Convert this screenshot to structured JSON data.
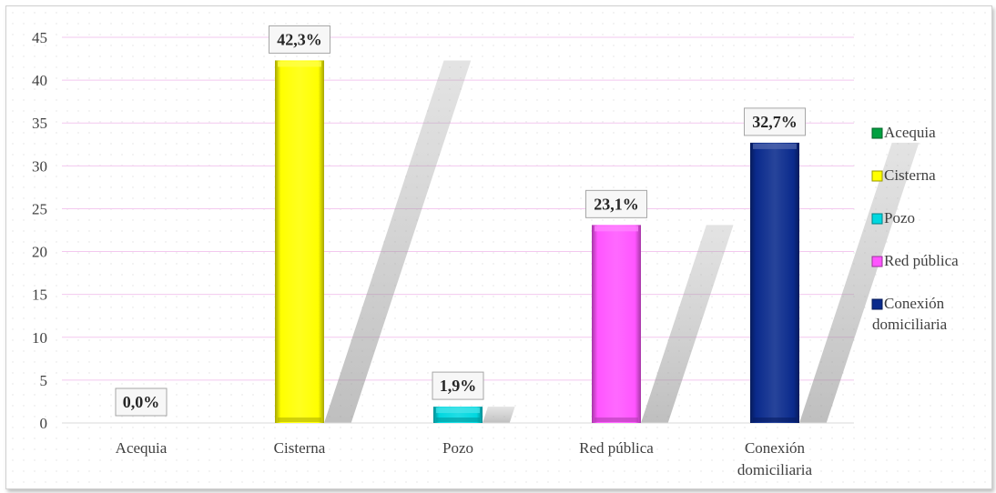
{
  "chart_data": {
    "type": "bar",
    "categories": [
      "Acequia",
      "Cisterna",
      "Pozo",
      "Red pública",
      "Conexión domiciliaria"
    ],
    "category_lines": [
      [
        "Acequia"
      ],
      [
        "Cisterna"
      ],
      [
        "Pozo"
      ],
      [
        "Red pública"
      ],
      [
        "Conexión",
        "domiciliaria"
      ]
    ],
    "values": [
      0.0,
      42.3,
      1.9,
      23.1,
      32.7
    ],
    "data_labels": [
      "0,0%",
      "42,3%",
      "1,9%",
      "23,1%",
      "32,7%"
    ],
    "colors": [
      "#00a040",
      "#ffff00",
      "#00d8e0",
      "#ff55ff",
      "#0a2a8c"
    ],
    "yticks": [
      0,
      5,
      10,
      15,
      20,
      25,
      30,
      35,
      40,
      45
    ],
    "ylim": [
      0,
      45
    ],
    "grid": true,
    "legend_position": "right",
    "legend": [
      {
        "lines": [
          "Acequia"
        ],
        "color": "#00a040"
      },
      {
        "lines": [
          "Cisterna"
        ],
        "color": "#ffff00"
      },
      {
        "lines": [
          "Pozo"
        ],
        "color": "#00d8e0"
      },
      {
        "lines": [
          "Red pública"
        ],
        "color": "#ff55ff"
      },
      {
        "lines": [
          "Conexión",
          "domiciliaria"
        ],
        "color": "#0a2a8c"
      }
    ]
  }
}
